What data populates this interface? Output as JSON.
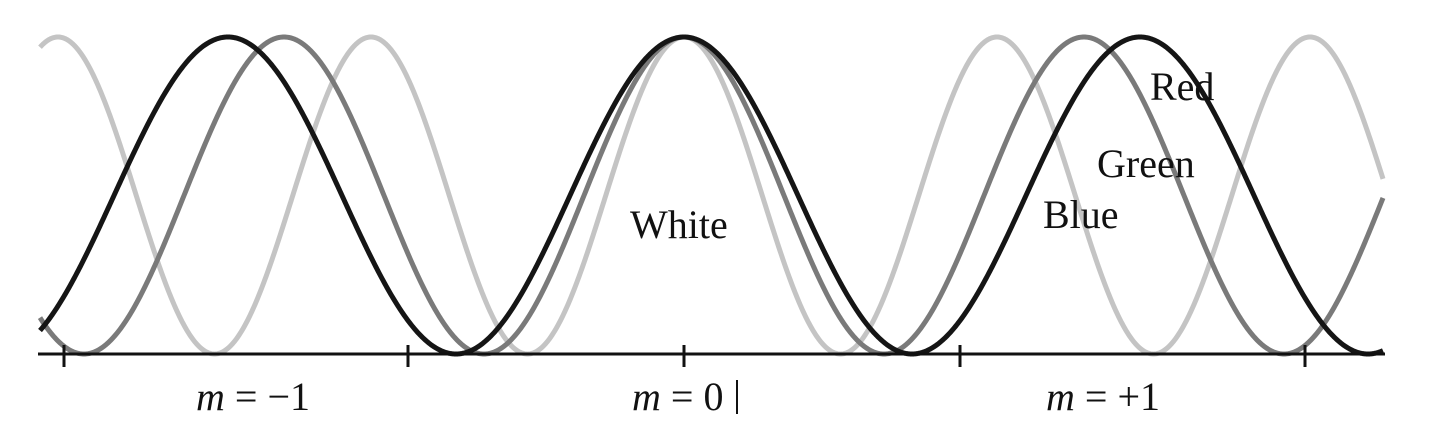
{
  "diagram": {
    "curves": [
      {
        "name": "Blue",
        "color": "#c4c4c4",
        "peaks_at_order": [
          -1,
          0,
          1,
          2
        ]
      },
      {
        "name": "Green",
        "color": "#7a7a7a",
        "peaks_at_order": [
          -1,
          0,
          1
        ]
      },
      {
        "name": "Red",
        "color": "#151515",
        "peaks_at_order": [
          -1,
          0,
          1
        ]
      }
    ],
    "labels": {
      "white": "White",
      "red": "Red",
      "green": "Green",
      "blue": "Blue"
    },
    "orders": [
      {
        "m": "m",
        "rest": " = −1"
      },
      {
        "m": "m",
        "rest": " = 0"
      },
      {
        "m": "m",
        "rest": " = +1"
      }
    ]
  }
}
